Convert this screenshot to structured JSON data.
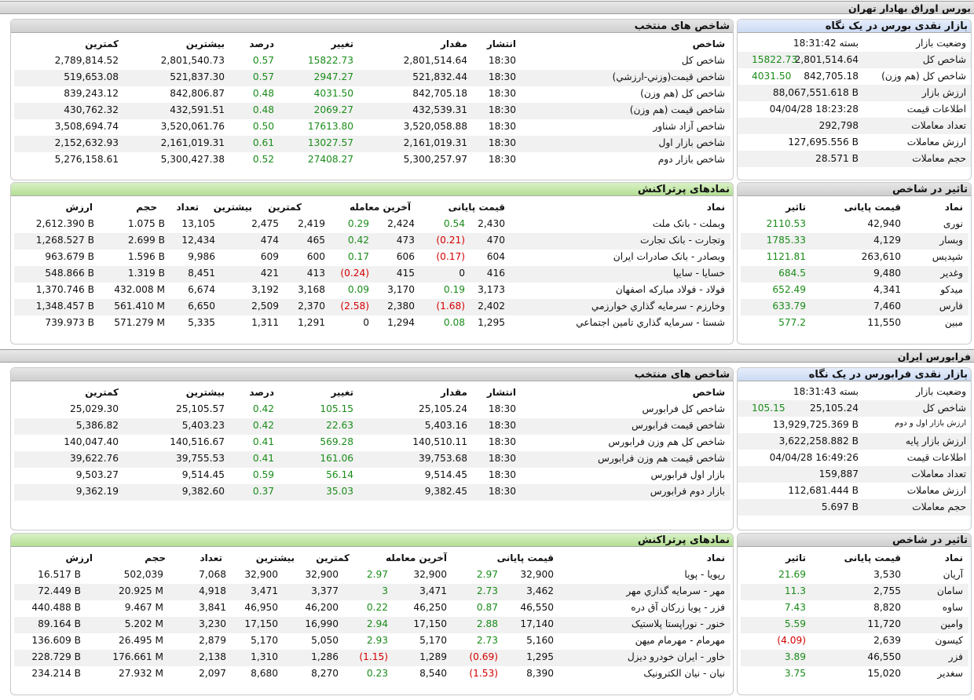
{
  "tehran": {
    "title": "بورس اوراق بهادار تهران",
    "glance": {
      "title": "بازار نقدی بورس در یک نگاه",
      "rows": [
        {
          "label": "وضعیت بازار",
          "value": "بسته 18:31:42",
          "extra": ""
        },
        {
          "label": "شاخص کل",
          "value": "2,801,514.64",
          "extra": "15822.73"
        },
        {
          "label": "شاخص کل (هم وزن)",
          "value": "842,705.18",
          "extra": "4031.50"
        },
        {
          "label": "ارزش بازار",
          "value": "88,067,551.618 B",
          "extra": ""
        },
        {
          "label": "اطلاعات قیمت",
          "value": "04/04/28 18:23:28",
          "extra": ""
        },
        {
          "label": "تعداد معاملات",
          "value": "292,798",
          "extra": ""
        },
        {
          "label": "ارزش معاملات",
          "value": "127,695.556 B",
          "extra": ""
        },
        {
          "label": "حجم معاملات",
          "value": "28.571 B",
          "extra": ""
        }
      ]
    },
    "indices": {
      "title": "شاخص های منتخب",
      "headers": [
        "شاخص",
        "انتشار",
        "مقدار",
        "تغییر",
        "درصد",
        "بیشترین",
        "کمترین"
      ],
      "rows": [
        [
          "شاخص کل",
          "18:30",
          "2,801,514.64",
          "15822.73",
          "0.57",
          "2,801,540.73",
          "2,789,814.52"
        ],
        [
          "شاخص قیمت(وزني-ارزشي)",
          "18:30",
          "521,832.44",
          "2947.27",
          "0.57",
          "521,837.30",
          "519,653.08"
        ],
        [
          "شاخص کل (هم وزن)",
          "18:30",
          "842,705.18",
          "4031.50",
          "0.48",
          "842,806.87",
          "839,243.12"
        ],
        [
          "شاخص قیمت (هم وزن)",
          "18:30",
          "432,539.31",
          "2069.27",
          "0.48",
          "432,591.51",
          "430,762.32"
        ],
        [
          "شاخص آزاد شناور",
          "18:30",
          "3,520,058.88",
          "17613.80",
          "0.50",
          "3,520,061.76",
          "3,508,694.74"
        ],
        [
          "شاخص بازار اول",
          "18:30",
          "2,161,019.31",
          "13027.57",
          "0.61",
          "2,161,019.31",
          "2,152,632.93"
        ],
        [
          "شاخص بازار دوم",
          "18:30",
          "5,300,257.97",
          "27408.27",
          "0.52",
          "5,300,427.38",
          "5,276,158.61"
        ]
      ]
    },
    "impact": {
      "title": "تاثیر در شاخص",
      "headers": [
        "نماد",
        "قیمت پایانی",
        "تاثیر"
      ],
      "rows": [
        [
          "نوری",
          "42,940",
          "2110.53"
        ],
        [
          "وبسار",
          "4,129",
          "1785.33"
        ],
        [
          "شپدیس",
          "263,610",
          "1121.81"
        ],
        [
          "وغدیر",
          "9,480",
          "684.5"
        ],
        [
          "میدکو",
          "4,341",
          "652.49"
        ],
        [
          "فارس",
          "7,460",
          "633.79"
        ],
        [
          "مبین",
          "11,550",
          "577.2"
        ]
      ]
    },
    "top": {
      "title": "نمادهای پرتراکنش",
      "headers": [
        "نماد",
        "قیمت پایانی",
        "آخرین معامله",
        "کمترین",
        "بیشترین",
        "تعداد",
        "حجم",
        "ارزش"
      ],
      "rows": [
        [
          "وبملت - بانک ملت",
          "2,430",
          "0.54",
          "2,424",
          "0.29",
          "2,419",
          "2,475",
          "13,105",
          "1.075 B",
          "2,612.390 B"
        ],
        [
          "وتجارت - بانک تجارت",
          "470",
          "(0.21)",
          "473",
          "0.42",
          "465",
          "474",
          "12,434",
          "2.699 B",
          "1,268.527 B"
        ],
        [
          "وبصادر - بانک صادرات ایران",
          "604",
          "(0.17)",
          "606",
          "0.17",
          "600",
          "609",
          "9,986",
          "1.596 B",
          "963.679 B"
        ],
        [
          "خسایا - سایپا",
          "416",
          "0",
          "415",
          "(0.24)",
          "413",
          "421",
          "8,451",
          "1.319 B",
          "548.866 B"
        ],
        [
          "فولاد - فولاد مبارکه اصفهان",
          "3,173",
          "0.19",
          "3,170",
          "0.09",
          "3,168",
          "3,192",
          "6,674",
          "432.008 M",
          "1,370.746 B"
        ],
        [
          "وخارزم - سرمایه گذاري خوارزمي",
          "2,402",
          "(1.68)",
          "2,380",
          "(2.58)",
          "2,370",
          "2,509",
          "6,650",
          "561.410 M",
          "1,348.457 B"
        ],
        [
          "شستا - سرمایه گذاري تامين اجتماعي",
          "1,295",
          "0.08",
          "1,294",
          "0",
          "1,291",
          "1,311",
          "5,335",
          "571.279 M",
          "739.973 B"
        ]
      ]
    }
  },
  "farabourse": {
    "title": "فرابورس ایران",
    "glance": {
      "title": "بازار نقدی فرابورس در یک نگاه",
      "rows": [
        {
          "label": "وضعیت بازار",
          "value": "بسته 18:31:43",
          "extra": ""
        },
        {
          "label": "شاخص کل",
          "value": "25,105.24",
          "extra": "105.15"
        },
        {
          "label": "ارزش بازار اول و دوم",
          "value": "13,929,725.369 B",
          "extra": ""
        },
        {
          "label": "ارزش بازار پایه",
          "value": "3,622,258.882 B",
          "extra": ""
        },
        {
          "label": "اطلاعات قیمت",
          "value": "04/04/28 16:49:26",
          "extra": ""
        },
        {
          "label": "تعداد معاملات",
          "value": "159,887",
          "extra": ""
        },
        {
          "label": "ارزش معاملات",
          "value": "112,681.444 B",
          "extra": ""
        },
        {
          "label": "حجم معاملات",
          "value": "5.697 B",
          "extra": ""
        }
      ]
    },
    "indices": {
      "title": "شاخص های منتخب",
      "headers": [
        "شاخص",
        "انتشار",
        "مقدار",
        "تغییر",
        "درصد",
        "بیشترین",
        "کمترین"
      ],
      "rows": [
        [
          "شاخص کل فرابورس",
          "18:30",
          "25,105.24",
          "105.15",
          "0.42",
          "25,105.57",
          "25,029.30"
        ],
        [
          "شاخص قیمت فرابورس",
          "18:30",
          "5,403.16",
          "22.63",
          "0.42",
          "5,403.23",
          "5,386.82"
        ],
        [
          "شاخص کل هم وزن فرابورس",
          "18:30",
          "140,510.11",
          "569.28",
          "0.41",
          "140,516.67",
          "140,047.40"
        ],
        [
          "شاخص قیمت هم وزن فرابورس",
          "18:30",
          "39,753.68",
          "161.06",
          "0.41",
          "39,755.53",
          "39,622.76"
        ],
        [
          "بازار اول فرابورس",
          "18:30",
          "9,514.45",
          "56.14",
          "0.59",
          "9,514.45",
          "9,503.27"
        ],
        [
          "بازار دوم فرابورس",
          "18:30",
          "9,382.45",
          "35.03",
          "0.37",
          "9,382.60",
          "9,362.19"
        ]
      ]
    },
    "impact": {
      "title": "تاثیر در شاخص",
      "headers": [
        "نماد",
        "قیمت پایانی",
        "تاثیر"
      ],
      "rows": [
        [
          "آریان",
          "3,530",
          "21.69"
        ],
        [
          "سامان",
          "2,755",
          "11.3"
        ],
        [
          "ساوه",
          "8,820",
          "7.43"
        ],
        [
          "وامین",
          "11,720",
          "5.59"
        ],
        [
          "کیسون",
          "2,639",
          "(4.09)"
        ],
        [
          "فزر",
          "46,550",
          "3.89"
        ],
        [
          "سغدیر",
          "15,020",
          "3.75"
        ]
      ]
    },
    "top": {
      "title": "نمادهای پرتراکنش",
      "headers": [
        "نماد",
        "قیمت پایانی",
        "آخرین معامله",
        "کمترین",
        "بیشترین",
        "تعداد",
        "حجم",
        "ارزش"
      ],
      "rows": [
        [
          "رپویا - پویا",
          "32,900",
          "2.97",
          "32,900",
          "2.97",
          "32,900",
          "32,900",
          "7,068",
          "502,039",
          "16.517 B"
        ],
        [
          "مهر - سرمایه گذاري مهر",
          "3,462",
          "2.73",
          "3,471",
          "3",
          "3,377",
          "3,471",
          "4,918",
          "20.925 M",
          "72.449 B"
        ],
        [
          "فزر - پویا زرکان آق دره",
          "46,550",
          "0.87",
          "46,250",
          "0.22",
          "46,200",
          "46,950",
          "3,841",
          "9.467 M",
          "440.488 B"
        ],
        [
          "خنور - نوراپستا پلاستیک",
          "17,140",
          "2.88",
          "17,150",
          "2.94",
          "16,990",
          "17,150",
          "3,230",
          "5.202 M",
          "89.164 B"
        ],
        [
          "مهرمام - مهرمام میهن",
          "5,160",
          "2.73",
          "5,170",
          "2.93",
          "5,050",
          "5,170",
          "2,879",
          "26.495 M",
          "136.609 B"
        ],
        [
          "خاور - ایران خودرو دیزل",
          "1,295",
          "(0.69)",
          "1,289",
          "(1.15)",
          "1,286",
          "1,310",
          "2,138",
          "176.661 M",
          "228.729 B"
        ],
        [
          "نیان - نیان الکترونیک",
          "8,390",
          "(1.53)",
          "8,540",
          "0.23",
          "8,270",
          "8,680",
          "2,097",
          "27.932 M",
          "234.214 B"
        ]
      ]
    }
  },
  "colors": {
    "positive": "#1a8c1a",
    "negative": "#d40000",
    "stripe": "#f1f1f1",
    "green_header": "#c3e6a8",
    "blue_header": "#d6e2f6",
    "gray_header": "#dadada"
  }
}
